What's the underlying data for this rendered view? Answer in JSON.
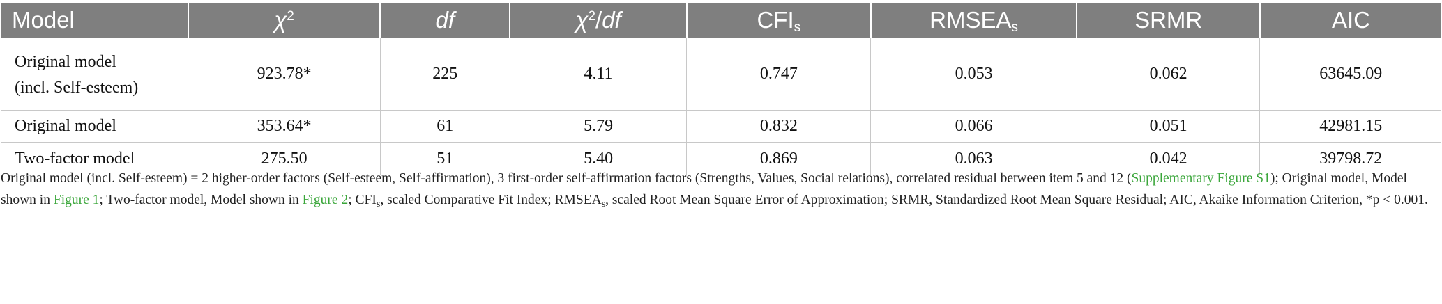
{
  "table": {
    "headers": {
      "model": "Model",
      "chi2_symbol": "χ",
      "chi2_sup": "2",
      "df": "df",
      "chidf_symbol": "χ",
      "chidf_sup": "2",
      "chidf_slash": "/",
      "chidf_df": "df",
      "cfi": "CFI",
      "cfi_sub": "s",
      "rmsea": "RMSEA",
      "rmsea_sub": "s",
      "srmr": "SRMR",
      "aic": "AIC"
    },
    "rows": [
      {
        "model_line1": "Original model",
        "model_line2": "(incl. Self-esteem)",
        "chi2": "923.78*",
        "df": "225",
        "chi2_df": "4.11",
        "cfi": "0.747",
        "rmsea": "0.053",
        "srmr": "0.062",
        "aic": "63645.09"
      },
      {
        "model_line1": "Original model",
        "chi2": "353.64*",
        "df": "61",
        "chi2_df": "5.79",
        "cfi": "0.832",
        "rmsea": "0.066",
        "srmr": "0.051",
        "aic": "42981.15"
      },
      {
        "model_line1": "Two-factor model",
        "chi2": "275.50",
        "df": "51",
        "chi2_df": "5.40",
        "cfi": "0.869",
        "rmsea": "0.063",
        "srmr": "0.042",
        "aic": "39798.72"
      }
    ]
  },
  "footnote": {
    "p1": "Original model (incl. Self-esteem) = 2 higher-order factors (Self-esteem, Self-affirmation), 3 first-order self-affirmation factors (Strengths, Values, Social relations), correlated residual between item 5 and 12 (",
    "link1": "Supplementary Figure S1",
    "p2": "); Original model, Model shown in ",
    "link2": "Figure 1",
    "p3": "; Two-factor model, Model shown in ",
    "link3": "Figure 2",
    "p4": "; CFI",
    "sub1": "s",
    "p5": ", scaled Comparative Fit Index; RMSEA",
    "sub2": "s",
    "p6": ", scaled Root Mean Square Error of Approximation; SRMR, Standardized Root Mean Square Residual; AIC, Akaike Information Criterion, *p < 0.001.",
    "link_color": "#3aa63a"
  },
  "colors": {
    "header_bg": "#7f7f7f",
    "header_text": "#ffffff",
    "grid": "#c8c8c8"
  }
}
